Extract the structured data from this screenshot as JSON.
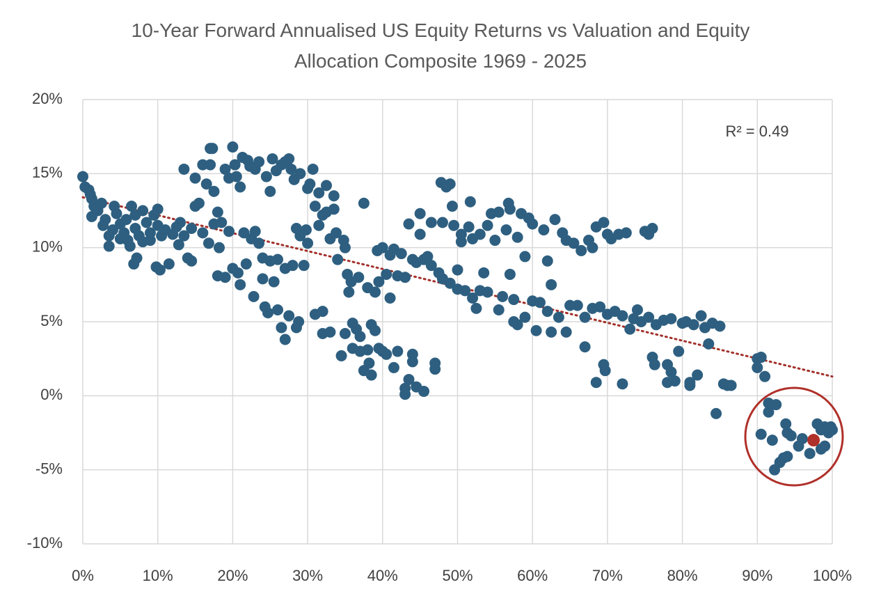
{
  "chart_data": {
    "type": "scatter",
    "title": "10-Year Forward Annualised US Equity Returns vs Valuation and Equity Allocation Composite 1969 - 2025",
    "annotation": "R² = 0.49",
    "color": "#2e5f80",
    "grid": true,
    "xlim": [
      0,
      100
    ],
    "ylim": [
      -10,
      20
    ],
    "xticks": [
      {
        "value": 0,
        "label": "0%"
      },
      {
        "value": 10,
        "label": "10%"
      },
      {
        "value": 20,
        "label": "20%"
      },
      {
        "value": 30,
        "label": "30%"
      },
      {
        "value": 40,
        "label": "40%"
      },
      {
        "value": 50,
        "label": "50%"
      },
      {
        "value": 60,
        "label": "60%"
      },
      {
        "value": 70,
        "label": "70%"
      },
      {
        "value": 80,
        "label": "80%"
      },
      {
        "value": 90,
        "label": "90%"
      },
      {
        "value": 100,
        "label": "100%"
      }
    ],
    "yticks": [
      {
        "value": -10,
        "label": "-10%"
      },
      {
        "value": -5,
        "label": "-5%"
      },
      {
        "value": 0,
        "label": "0%"
      },
      {
        "value": 5,
        "label": "5%"
      },
      {
        "value": 10,
        "label": "10%"
      },
      {
        "value": 15,
        "label": "15%"
      },
      {
        "value": 20,
        "label": "20%"
      }
    ],
    "trendline": {
      "color": "#a3302a",
      "x": [
        0,
        100
      ],
      "values": [
        13.4,
        1.3
      ]
    },
    "highlight": {
      "color": "#b0302a",
      "x": 97.5,
      "value": -3.0
    },
    "x": [
      0,
      0.3,
      0.8,
      1,
      1.2,
      1.5,
      1.2,
      2,
      2.5,
      2.7,
      3,
      3.5,
      3.5,
      4,
      4.2,
      4.5,
      5,
      5,
      5.5,
      5.8,
      6,
      6.3,
      6.5,
      7,
      7,
      7.2,
      6.8,
      7.5,
      8,
      8,
      8.5,
      9,
      9,
      9.5,
      10,
      10,
      10.5,
      10.3,
      9.8,
      11,
      11.5,
      12,
      12.5,
      12.8,
      13,
      13.5,
      13.5,
      14,
      14.5,
      14.5,
      15,
      15,
      15.5,
      16,
      16,
      16.5,
      16.8,
      17,
      17,
      17.3,
      17.5,
      17.5,
      18,
      18,
      18.2,
      18.5,
      19,
      19,
      19.5,
      19.5,
      20,
      20,
      20.3,
      20.5,
      20.7,
      21,
      21,
      21.3,
      21.5,
      21.8,
      22,
      22.3,
      22.5,
      22.8,
      23,
      23,
      23.5,
      23.5,
      24,
      24,
      24.3,
      24.5,
      24.7,
      25,
      25,
      25.3,
      25.5,
      25.8,
      26,
      26,
      26.5,
      26.5,
      27,
      27,
      27,
      27.5,
      27.5,
      27.8,
      28,
      28.2,
      28.5,
      28.5,
      28.8,
      29,
      29,
      29.5,
      29.8,
      30,
      30,
      30.3,
      30.7,
      31,
      31,
      31.5,
      31.5,
      32,
      32,
      32,
      32.5,
      32.5,
      33,
      33,
      33.5,
      33.5,
      33.8,
      34,
      34.5,
      34.8,
      35,
      35,
      35.3,
      35.5,
      35.8,
      36,
      36,
      36.5,
      36.8,
      37,
      37,
      37.5,
      37.5,
      38,
      38,
      38.2,
      38.5,
      38.5,
      39,
      39,
      39.3,
      39.5,
      39.5,
      40,
      40,
      40.5,
      40.5,
      41,
      41,
      41.5,
      41.5,
      42,
      42,
      42.5,
      43,
      43,
      43,
      43.5,
      43.5,
      44,
      44,
      44,
      44.5,
      44.5,
      45,
      45,
      45.5,
      45.5,
      46,
      46.5,
      46.5,
      47,
      47,
      47.5,
      47.8,
      48,
      48,
      48.5,
      49,
      49,
      49.3,
      49.5,
      50,
      50,
      50.5,
      50.5,
      51,
      51.5,
      51.7,
      52,
      52,
      52.5,
      53,
      53,
      53.5,
      54,
      54,
      54.5,
      55,
      55.5,
      55.5,
      56,
      56.5,
      56.8,
      57,
      57,
      57.5,
      57.5,
      58,
      58,
      58.5,
      59,
      59,
      59.5,
      60,
      60,
      60.5,
      61,
      61.5,
      62,
      62,
      62.5,
      62.5,
      63,
      63.5,
      64,
      64.5,
      64.5,
      65,
      65.5,
      66,
      66.5,
      67,
      67,
      67.5,
      68,
      68,
      68.5,
      68.5,
      69,
      69.5,
      69.5,
      69.7,
      70,
      70,
      70.5,
      71,
      71.5,
      72,
      72,
      72.5,
      73,
      73.5,
      74,
      74.5,
      75,
      75.5,
      75.5,
      76,
      76,
      76.3,
      76.5,
      77.5,
      78,
      78,
      78.5,
      78.5,
      79,
      79.5,
      80,
      80.5,
      81,
      81,
      81.5,
      82,
      82.5,
      83,
      83.5,
      84,
      84.5,
      85,
      85.5,
      86,
      86.5,
      90,
      90,
      90.5,
      91,
      90.5,
      91.5,
      91.5,
      92,
      92.3,
      92.5,
      93,
      93.5,
      93.8,
      94,
      94,
      94.5,
      95.5,
      96,
      97,
      98,
      98.5,
      98.5,
      99,
      99,
      99.5,
      99.8,
      100
    ],
    "values": [
      14.8,
      14.1,
      13.9,
      13.6,
      13.3,
      12.8,
      12.1,
      12.5,
      13,
      11.5,
      11.9,
      10.8,
      10.1,
      11.2,
      12.8,
      12.3,
      11.6,
      10.6,
      11,
      11.9,
      10.5,
      10.1,
      12.8,
      12.2,
      11.3,
      9.3,
      8.9,
      10.8,
      12.5,
      10.4,
      11.7,
      11,
      10.5,
      12.2,
      12.6,
      11.5,
      10.8,
      8.5,
      8.7,
      11.2,
      8.9,
      10.9,
      11.4,
      10.2,
      11.7,
      15.3,
      10.8,
      9.3,
      11.3,
      9.1,
      12.8,
      14.7,
      13,
      15.6,
      11,
      14.3,
      10.3,
      15.6,
      16.7,
      16.7,
      13.8,
      11.6,
      12.4,
      8.1,
      10,
      11.7,
      15.3,
      8,
      14.7,
      11.1,
      16.8,
      8.6,
      15.6,
      14.8,
      8.3,
      14.1,
      7.5,
      16.1,
      11,
      8.9,
      15.9,
      15.5,
      10.6,
      6.7,
      15.3,
      11.1,
      15.8,
      10.3,
      9.3,
      7.9,
      6,
      14.8,
      5.6,
      13.8,
      9.1,
      16,
      7.7,
      15.2,
      9.2,
      5.8,
      15.6,
      4.6,
      15.8,
      8.6,
      3.8,
      16,
      5.4,
      15.3,
      8.8,
      14.6,
      11.3,
      4.6,
      5,
      15,
      10.8,
      8.8,
      11.2,
      14,
      10.3,
      14.3,
      15.3,
      12.8,
      5.5,
      11.5,
      13.7,
      12.2,
      5.7,
      4.2,
      14.2,
      12.4,
      4.3,
      10.6,
      12.6,
      13.5,
      11,
      9.2,
      2.7,
      10.5,
      4.2,
      10,
      8.2,
      7,
      7.7,
      4.9,
      3.2,
      4.5,
      8,
      3,
      4,
      13,
      1.7,
      7.3,
      3.1,
      2.2,
      4.8,
      1.4,
      4.4,
      7,
      9.8,
      3.2,
      7.7,
      10,
      3,
      8.2,
      2.8,
      9.5,
      6.6,
      9.9,
      1.9,
      8.1,
      3,
      9.6,
      8,
      0.5,
      0.1,
      1.1,
      11.6,
      9.2,
      2.8,
      2.3,
      0.6,
      9,
      12.3,
      10.9,
      9.2,
      0.3,
      9.4,
      8.8,
      11.7,
      2.2,
      1.8,
      8.3,
      14.4,
      11.7,
      7.9,
      14.1,
      14.3,
      7.6,
      12.8,
      11.5,
      8.5,
      7.2,
      10.9,
      10.4,
      7.1,
      11.4,
      13.1,
      6.6,
      10.6,
      5.9,
      7.1,
      10.9,
      8.3,
      7,
      11.5,
      12.3,
      10.5,
      5.8,
      12.4,
      6.7,
      11.2,
      13,
      8.2,
      12.6,
      6.5,
      5,
      10.7,
      4.8,
      12.3,
      9.4,
      5.3,
      12,
      6.4,
      11.6,
      4.4,
      6.3,
      11.2,
      5.7,
      9.1,
      7.5,
      4.3,
      11.9,
      5.3,
      11,
      10.5,
      4.3,
      6.1,
      10.3,
      6.1,
      9.8,
      5.3,
      3.3,
      10.5,
      5.9,
      10,
      11.4,
      0.9,
      6,
      11.7,
      2.1,
      1.7,
      5.5,
      10.9,
      10.6,
      5.7,
      10.9,
      5.4,
      0.8,
      11,
      4.5,
      5.2,
      5.8,
      5,
      11.1,
      10.9,
      5.3,
      11.3,
      2.6,
      2.1,
      4.8,
      5.1,
      2.1,
      0.9,
      5.2,
      1.6,
      1,
      3,
      4.9,
      5,
      0.9,
      0.7,
      4.8,
      1.4,
      5.4,
      4.6,
      3.5,
      4.9,
      -1.2,
      4.7,
      0.8,
      0.7,
      0.7,
      2.5,
      1.9,
      2.6,
      1.3,
      -2.6,
      -1.1,
      -0.5,
      -3,
      -5,
      -0.6,
      -4.5,
      -4.2,
      -1.9,
      -4.1,
      -2.5,
      -2.7,
      -3.4,
      -2.9,
      -3.9,
      -1.9,
      -2.3,
      -3.6,
      -3.4,
      -2.1,
      -2.5,
      -2.1,
      -2.3
    ]
  }
}
